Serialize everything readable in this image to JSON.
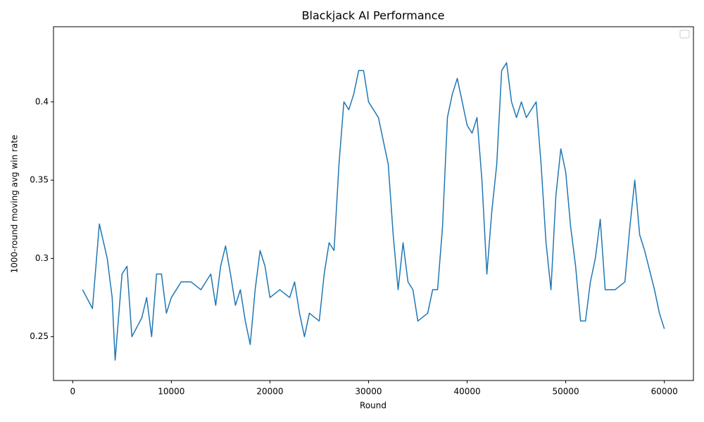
{
  "chart_data": {
    "type": "line",
    "title": "Blackjack AI Performance",
    "x_label": "Round",
    "y_label": "1000-round moving avg win rate",
    "xlim": [
      -1950,
      62950
    ],
    "ylim": [
      0.222,
      0.448
    ],
    "xticks": [
      0,
      10000,
      20000,
      30000,
      40000,
      50000,
      60000
    ],
    "yticks": [
      0.25,
      0.3,
      0.35,
      0.4
    ],
    "series": [
      {
        "color": "#1f77b4",
        "x": [
          1000,
          2000,
          2700,
          3500,
          4000,
          4300,
          5000,
          5500,
          6000,
          7000,
          7500,
          8000,
          8500,
          9000,
          9500,
          10000,
          11000,
          12000,
          13000,
          14000,
          14500,
          15000,
          15500,
          16000,
          16500,
          17000,
          17500,
          18000,
          18500,
          19000,
          19500,
          20000,
          21000,
          22000,
          22500,
          23000,
          23500,
          24000,
          25000,
          25500,
          26000,
          26500,
          27000,
          27500,
          28000,
          28500,
          29000,
          29500,
          30000,
          31000,
          32000,
          32500,
          33000,
          33500,
          34000,
          34500,
          35000,
          36000,
          36500,
          37000,
          37500,
          38000,
          38500,
          39000,
          39500,
          40000,
          40500,
          41000,
          41500,
          42000,
          42500,
          43000,
          43500,
          44000,
          44500,
          45000,
          45500,
          46000,
          47000,
          47500,
          48000,
          48500,
          49000,
          49500,
          50000,
          50500,
          51000,
          51500,
          52000,
          52500,
          53000,
          53500,
          54000,
          55000,
          56000,
          56500,
          57000,
          57500,
          58000,
          59000,
          59500,
          60000
        ],
        "values": [
          0.28,
          0.268,
          0.322,
          0.3,
          0.275,
          0.235,
          0.29,
          0.295,
          0.25,
          0.262,
          0.275,
          0.25,
          0.29,
          0.29,
          0.265,
          0.275,
          0.285,
          0.285,
          0.28,
          0.29,
          0.27,
          0.295,
          0.308,
          0.29,
          0.27,
          0.28,
          0.26,
          0.245,
          0.28,
          0.305,
          0.295,
          0.275,
          0.28,
          0.275,
          0.285,
          0.265,
          0.25,
          0.265,
          0.26,
          0.29,
          0.31,
          0.305,
          0.36,
          0.4,
          0.395,
          0.405,
          0.42,
          0.42,
          0.4,
          0.39,
          0.36,
          0.315,
          0.28,
          0.31,
          0.285,
          0.28,
          0.26,
          0.265,
          0.28,
          0.28,
          0.32,
          0.39,
          0.405,
          0.415,
          0.4,
          0.385,
          0.38,
          0.39,
          0.35,
          0.29,
          0.33,
          0.36,
          0.42,
          0.425,
          0.4,
          0.39,
          0.4,
          0.39,
          0.4,
          0.36,
          0.31,
          0.28,
          0.34,
          0.37,
          0.355,
          0.32,
          0.295,
          0.26,
          0.26,
          0.285,
          0.3,
          0.325,
          0.28,
          0.28,
          0.285,
          0.32,
          0.35,
          0.315,
          0.305,
          0.28,
          0.265,
          0.255
        ]
      }
    ]
  }
}
